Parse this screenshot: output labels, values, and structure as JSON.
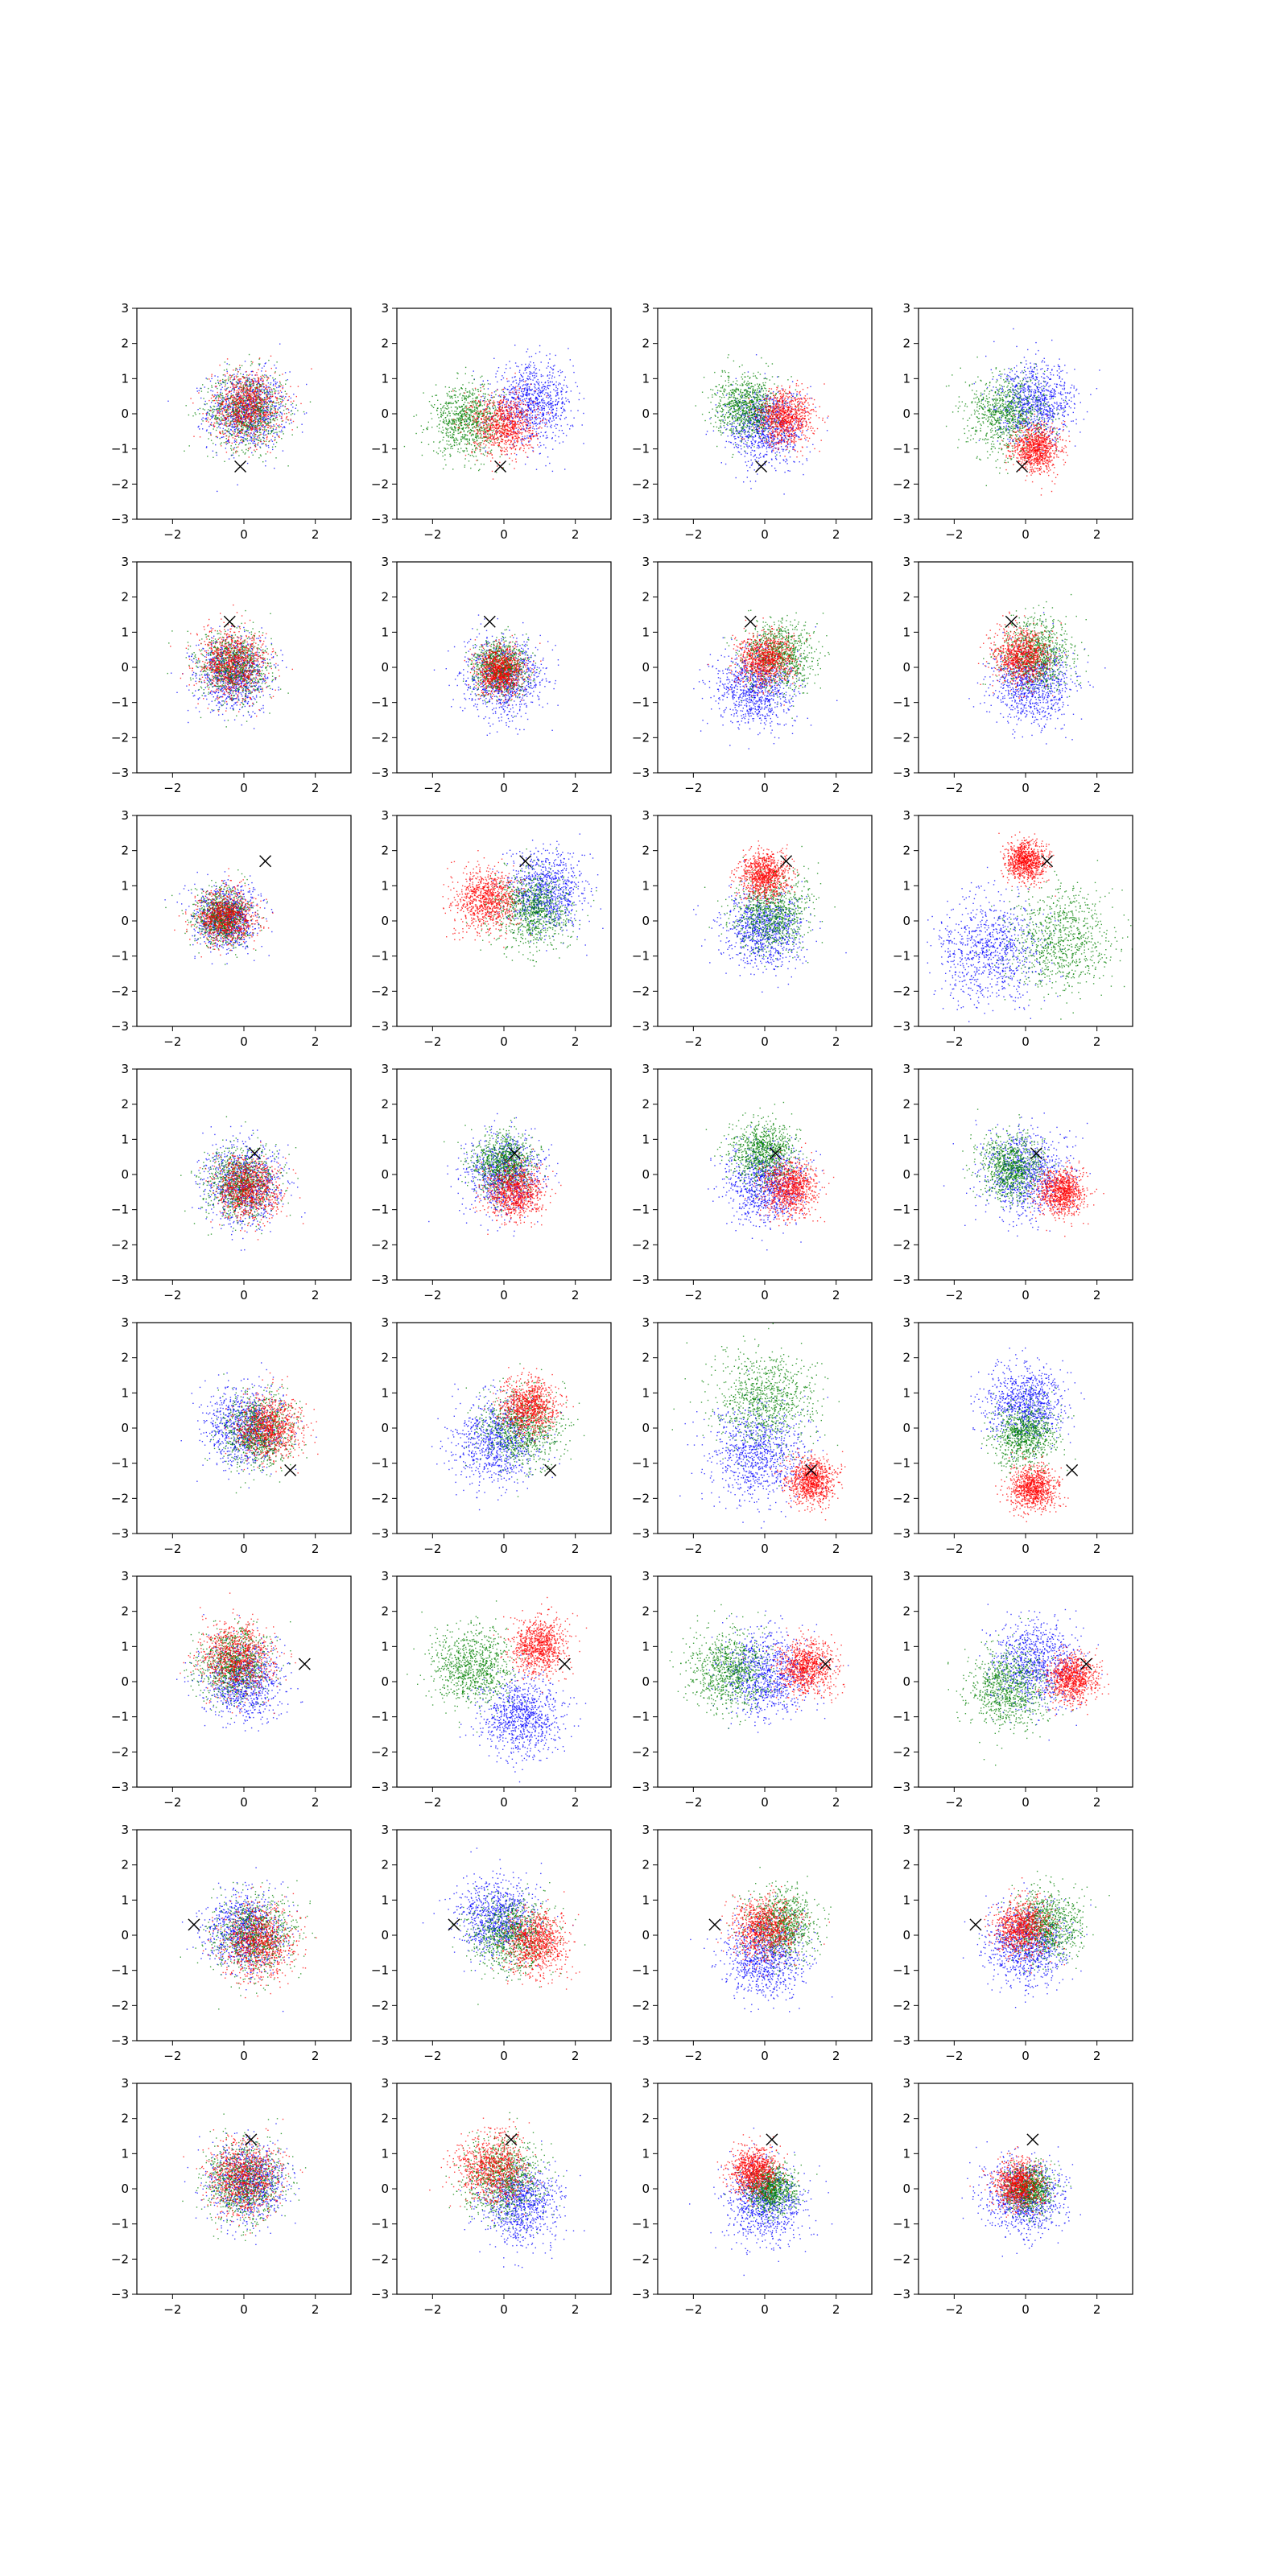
{
  "figure": {
    "rows": 8,
    "cols": 4
  },
  "colors": {
    "series_a": "#0000ff",
    "series_b": "#008000",
    "series_c": "#ff0000",
    "marker": "#000000"
  },
  "chart_data": {
    "type": "scatter",
    "layout": "grid of 8 rows x 4 columns of scatter subplots, identical axes",
    "xlim": [
      -3,
      3
    ],
    "ylim": [
      -3,
      3
    ],
    "xticks": [
      -2,
      0,
      2
    ],
    "yticks": [
      -3,
      -2,
      -1,
      0,
      1,
      2,
      3
    ],
    "xtick_labels": [
      "−2",
      "0",
      "2"
    ],
    "ytick_labels": [
      "−3",
      "−2",
      "−1",
      "0",
      "1",
      "2",
      "3"
    ],
    "grid": false,
    "legend": "none",
    "note_series": "three point clouds per subplot colored blue, green and red; clouds approximated by their center and spread",
    "marker_style": "x",
    "rows": [
      {
        "marker": [
          -0.1,
          -1.5
        ],
        "panels": [
          {
            "blue": [
              0.1,
              0.1,
              1.0
            ],
            "green": [
              0.1,
              0.1,
              1.0
            ],
            "red": [
              0.1,
              0.2,
              0.9
            ]
          },
          {
            "blue": [
              0.8,
              0.3,
              1.0
            ],
            "green": [
              -1.0,
              -0.2,
              0.9
            ],
            "red": [
              0.0,
              -0.3,
              0.8
            ]
          },
          {
            "blue": [
              0.0,
              -0.4,
              1.0
            ],
            "green": [
              -0.5,
              0.2,
              0.8
            ],
            "red": [
              0.6,
              -0.1,
              0.7
            ]
          },
          {
            "blue": [
              0.3,
              0.3,
              1.0
            ],
            "green": [
              -0.5,
              0.0,
              1.0
            ],
            "red": [
              0.3,
              -1.0,
              0.6
            ]
          }
        ]
      },
      {
        "marker": [
          -0.4,
          1.3
        ],
        "panels": [
          {
            "blue": [
              -0.3,
              -0.2,
              0.9
            ],
            "green": [
              -0.3,
              0.0,
              0.9
            ],
            "red": [
              -0.3,
              0.1,
              0.9
            ]
          },
          {
            "blue": [
              0.0,
              -0.3,
              1.0
            ],
            "green": [
              -0.1,
              0.0,
              0.7
            ],
            "red": [
              -0.1,
              -0.1,
              0.6
            ]
          },
          {
            "blue": [
              -0.3,
              -0.6,
              1.0
            ],
            "green": [
              0.4,
              0.3,
              0.9
            ],
            "red": [
              0.0,
              0.2,
              0.7
            ]
          },
          {
            "blue": [
              0.2,
              -0.5,
              1.0
            ],
            "green": [
              0.3,
              0.4,
              0.9
            ],
            "red": [
              -0.1,
              0.3,
              0.7
            ]
          }
        ]
      },
      {
        "marker": [
          0.6,
          1.7
        ],
        "panels": [
          {
            "blue": [
              -0.5,
              0.1,
              0.8
            ],
            "green": [
              -0.6,
              0.1,
              0.7
            ],
            "red": [
              -0.5,
              0.1,
              0.7
            ]
          },
          {
            "blue": [
              1.2,
              0.8,
              1.0
            ],
            "green": [
              0.8,
              0.3,
              1.0
            ],
            "red": [
              -0.5,
              0.6,
              0.8
            ]
          },
          {
            "blue": [
              0.0,
              -0.2,
              1.0
            ],
            "green": [
              0.2,
              0.2,
              1.0
            ],
            "red": [
              0.0,
              1.3,
              0.6
            ]
          },
          {
            "blue": [
              -1.0,
              -0.8,
              1.3
            ],
            "green": [
              1.0,
              -0.5,
              1.3
            ],
            "red": [
              0.0,
              1.7,
              0.5
            ]
          }
        ]
      },
      {
        "marker": [
          0.3,
          0.6
        ],
        "panels": [
          {
            "blue": [
              0.0,
              -0.3,
              1.0
            ],
            "green": [
              -0.1,
              -0.3,
              0.9
            ],
            "red": [
              0.1,
              -0.4,
              0.8
            ]
          },
          {
            "blue": [
              0.0,
              0.0,
              1.0
            ],
            "green": [
              0.0,
              0.3,
              0.8
            ],
            "red": [
              0.3,
              -0.5,
              0.7
            ]
          },
          {
            "blue": [
              0.0,
              -0.3,
              1.0
            ],
            "green": [
              0.0,
              0.6,
              0.8
            ],
            "red": [
              0.7,
              -0.4,
              0.7
            ]
          },
          {
            "blue": [
              0.0,
              0.0,
              1.1
            ],
            "green": [
              -0.4,
              0.2,
              0.8
            ],
            "red": [
              1.0,
              -0.5,
              0.6
            ]
          }
        ]
      },
      {
        "marker": [
          1.3,
          -1.2
        ],
        "panels": [
          {
            "blue": [
              0.0,
              0.0,
              1.0
            ],
            "green": [
              0.4,
              -0.1,
              0.9
            ],
            "red": [
              0.7,
              0.0,
              0.8
            ]
          },
          {
            "blue": [
              -0.2,
              -0.4,
              1.1
            ],
            "green": [
              0.5,
              0.0,
              1.0
            ],
            "red": [
              0.7,
              0.6,
              0.7
            ]
          },
          {
            "blue": [
              -0.2,
              -0.7,
              1.2
            ],
            "green": [
              0.0,
              0.8,
              1.3
            ],
            "red": [
              1.3,
              -1.5,
              0.6
            ]
          },
          {
            "blue": [
              0.0,
              0.7,
              1.0
            ],
            "green": [
              0.0,
              -0.2,
              0.8
            ],
            "red": [
              0.2,
              -1.7,
              0.6
            ]
          }
        ]
      },
      {
        "marker": [
          1.7,
          0.5
        ],
        "panels": [
          {
            "blue": [
              0.0,
              0.0,
              1.0
            ],
            "green": [
              -0.3,
              0.5,
              0.9
            ],
            "red": [
              -0.2,
              0.7,
              0.9
            ]
          },
          {
            "blue": [
              0.5,
              -1.0,
              1.0
            ],
            "green": [
              -0.9,
              0.4,
              1.0
            ],
            "red": [
              1.0,
              1.0,
              0.7
            ]
          },
          {
            "blue": [
              0.0,
              0.2,
              1.1
            ],
            "green": [
              -1.0,
              0.3,
              1.0
            ],
            "red": [
              1.2,
              0.4,
              0.7
            ]
          },
          {
            "blue": [
              0.3,
              0.5,
              1.1
            ],
            "green": [
              -0.5,
              -0.2,
              1.0
            ],
            "red": [
              1.3,
              0.1,
              0.6
            ]
          }
        ]
      },
      {
        "marker": [
          -1.4,
          0.3
        ],
        "panels": [
          {
            "blue": [
              0.0,
              0.1,
              1.0
            ],
            "green": [
              0.3,
              0.0,
              1.0
            ],
            "red": [
              0.4,
              -0.2,
              0.9
            ]
          },
          {
            "blue": [
              -0.2,
              0.5,
              1.0
            ],
            "green": [
              0.2,
              0.0,
              1.0
            ],
            "red": [
              0.9,
              -0.2,
              0.8
            ]
          },
          {
            "blue": [
              0.0,
              -0.6,
              1.0
            ],
            "green": [
              0.5,
              0.3,
              0.9
            ],
            "red": [
              0.0,
              0.2,
              0.8
            ]
          },
          {
            "blue": [
              0.0,
              -0.3,
              1.0
            ],
            "green": [
              0.6,
              0.3,
              0.9
            ],
            "red": [
              -0.1,
              0.2,
              0.7
            ]
          }
        ]
      },
      {
        "marker": [
          0.2,
          1.4
        ],
        "panels": [
          {
            "blue": [
              0.1,
              0.2,
              1.0
            ],
            "green": [
              0.0,
              0.2,
              1.0
            ],
            "red": [
              0.0,
              0.3,
              0.9
            ]
          },
          {
            "blue": [
              0.5,
              -0.4,
              1.0
            ],
            "green": [
              0.0,
              0.3,
              1.0
            ],
            "red": [
              -0.3,
              0.6,
              0.9
            ]
          },
          {
            "blue": [
              0.0,
              -0.4,
              1.0
            ],
            "green": [
              0.2,
              0.0,
              0.6
            ],
            "red": [
              -0.3,
              0.5,
              0.6
            ]
          },
          {
            "blue": [
              0.0,
              -0.2,
              1.0
            ],
            "green": [
              0.1,
              0.0,
              0.6
            ],
            "red": [
              -0.2,
              0.1,
              0.6
            ]
          }
        ]
      }
    ]
  }
}
